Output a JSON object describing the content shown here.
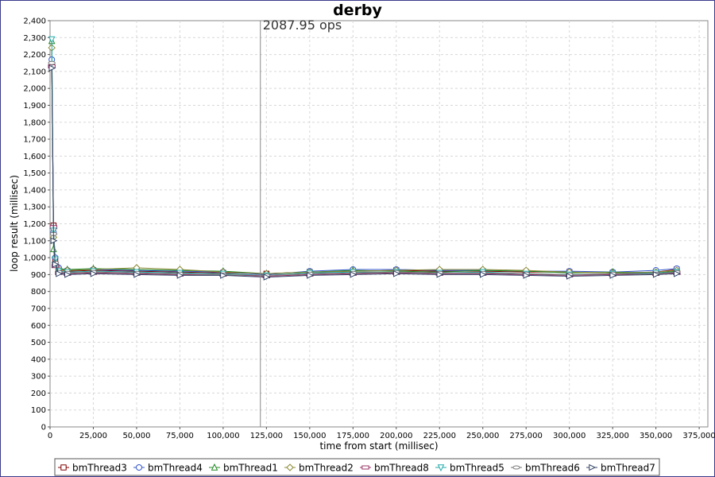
{
  "chart_data": {
    "type": "line",
    "title": "derby",
    "xlabel": "time from start (millisec)",
    "ylabel": "loop result (millisec)",
    "xlim": [
      0,
      380000
    ],
    "ylim": [
      0,
      2400
    ],
    "xticks": [
      0,
      25000,
      50000,
      75000,
      100000,
      125000,
      150000,
      175000,
      200000,
      225000,
      250000,
      275000,
      300000,
      325000,
      350000,
      375000
    ],
    "xtick_labels": [
      "0",
      "25,000",
      "50,000",
      "75,000",
      "100,000",
      "125,000",
      "150,000",
      "175,000",
      "200,000",
      "225,000",
      "250,000",
      "275,000",
      "300,000",
      "325,000",
      "350,000",
      "375,000"
    ],
    "yticks": [
      0,
      100,
      200,
      300,
      400,
      500,
      600,
      700,
      800,
      900,
      1000,
      1100,
      1200,
      1300,
      1400,
      1500,
      1600,
      1700,
      1800,
      1900,
      2000,
      2100,
      2200,
      2300,
      2400
    ],
    "ytick_labels": [
      "0",
      "100",
      "200",
      "300",
      "400",
      "500",
      "600",
      "700",
      "800",
      "900",
      "1,000",
      "1,100",
      "1,200",
      "1,300",
      "1,400",
      "1,500",
      "1,600",
      "1,700",
      "1,800",
      "1,900",
      "2,000",
      "2,100",
      "2,200",
      "2,300",
      "2,400"
    ],
    "grid": true,
    "legend_position": "bottom",
    "annotation": {
      "text": "2087.95 ops",
      "x": 121500
    },
    "series": [
      {
        "name": "bmThread3",
        "marker": "square",
        "color": "#800000",
        "x": [
          1000,
          2000,
          3000,
          5000,
          10000,
          25000,
          50000,
          75000,
          100000,
          125000,
          150000,
          175000,
          200000,
          225000,
          250000,
          275000,
          300000,
          325000,
          350000,
          362000
        ],
        "y": [
          2140,
          1190,
          980,
          930,
          920,
          925,
          920,
          915,
          910,
          905,
          915,
          920,
          925,
          920,
          920,
          915,
          915,
          910,
          915,
          930
        ]
      },
      {
        "name": "bmThread4",
        "marker": "circle",
        "color": "#3355cc",
        "x": [
          1000,
          2000,
          3000,
          5000,
          10000,
          25000,
          50000,
          75000,
          100000,
          125000,
          150000,
          175000,
          200000,
          225000,
          250000,
          275000,
          300000,
          325000,
          350000,
          362000
        ],
        "y": [
          2170,
          1150,
          1000,
          940,
          925,
          930,
          925,
          920,
          915,
          900,
          920,
          930,
          930,
          925,
          925,
          920,
          920,
          915,
          925,
          935
        ]
      },
      {
        "name": "bmThread1",
        "marker": "triangle-up",
        "color": "#228822",
        "x": [
          1000,
          2000,
          3000,
          5000,
          10000,
          25000,
          50000,
          75000,
          100000,
          125000,
          150000,
          175000,
          200000,
          225000,
          250000,
          275000,
          300000,
          325000,
          350000,
          362000
        ],
        "y": [
          2280,
          1050,
          960,
          935,
          930,
          935,
          930,
          925,
          920,
          905,
          915,
          925,
          920,
          915,
          925,
          920,
          910,
          915,
          910,
          920
        ]
      },
      {
        "name": "bmThread2",
        "marker": "diamond",
        "color": "#888833",
        "x": [
          1000,
          2000,
          3000,
          5000,
          10000,
          25000,
          50000,
          75000,
          100000,
          125000,
          150000,
          175000,
          200000,
          225000,
          250000,
          275000,
          300000,
          325000,
          350000,
          362000
        ],
        "y": [
          2240,
          1120,
          970,
          930,
          925,
          930,
          940,
          930,
          915,
          905,
          915,
          920,
          925,
          930,
          930,
          925,
          915,
          910,
          915,
          925
        ]
      },
      {
        "name": "bmThread8",
        "marker": "rect-wide",
        "color": "#993366",
        "x": [
          1000,
          2000,
          3000,
          5000,
          10000,
          25000,
          50000,
          75000,
          100000,
          125000,
          150000,
          175000,
          200000,
          225000,
          250000,
          275000,
          300000,
          325000,
          350000,
          362000
        ],
        "y": [
          2130,
          1180,
          950,
          910,
          905,
          910,
          905,
          900,
          900,
          890,
          900,
          905,
          910,
          905,
          905,
          900,
          895,
          900,
          905,
          910
        ]
      },
      {
        "name": "bmThread5",
        "marker": "triangle-down",
        "color": "#22aaaa",
        "x": [
          1000,
          2000,
          3000,
          5000,
          10000,
          25000,
          50000,
          75000,
          100000,
          125000,
          150000,
          175000,
          200000,
          225000,
          250000,
          275000,
          300000,
          325000,
          350000,
          362000
        ],
        "y": [
          2290,
          1160,
          990,
          920,
          915,
          920,
          915,
          910,
          905,
          895,
          910,
          915,
          915,
          910,
          915,
          905,
          900,
          905,
          910,
          915
        ]
      },
      {
        "name": "bmThread6",
        "marker": "ellipse-wide",
        "color": "#777777",
        "x": [
          1000,
          2000,
          3000,
          5000,
          10000,
          25000,
          50000,
          75000,
          100000,
          125000,
          150000,
          175000,
          200000,
          225000,
          250000,
          275000,
          300000,
          325000,
          350000,
          362000
        ],
        "y": [
          2150,
          1140,
          970,
          915,
          910,
          915,
          910,
          905,
          900,
          895,
          905,
          910,
          915,
          910,
          910,
          905,
          900,
          905,
          905,
          915
        ]
      },
      {
        "name": "bmThread7",
        "marker": "triangle-right",
        "color": "#334466",
        "x": [
          1000,
          2000,
          3000,
          5000,
          10000,
          25000,
          50000,
          75000,
          100000,
          125000,
          150000,
          175000,
          200000,
          225000,
          250000,
          275000,
          300000,
          325000,
          350000,
          362000
        ],
        "y": [
          2120,
          1100,
          960,
          905,
          900,
          905,
          900,
          895,
          895,
          885,
          895,
          900,
          905,
          900,
          900,
          895,
          890,
          895,
          900,
          905
        ]
      }
    ]
  }
}
